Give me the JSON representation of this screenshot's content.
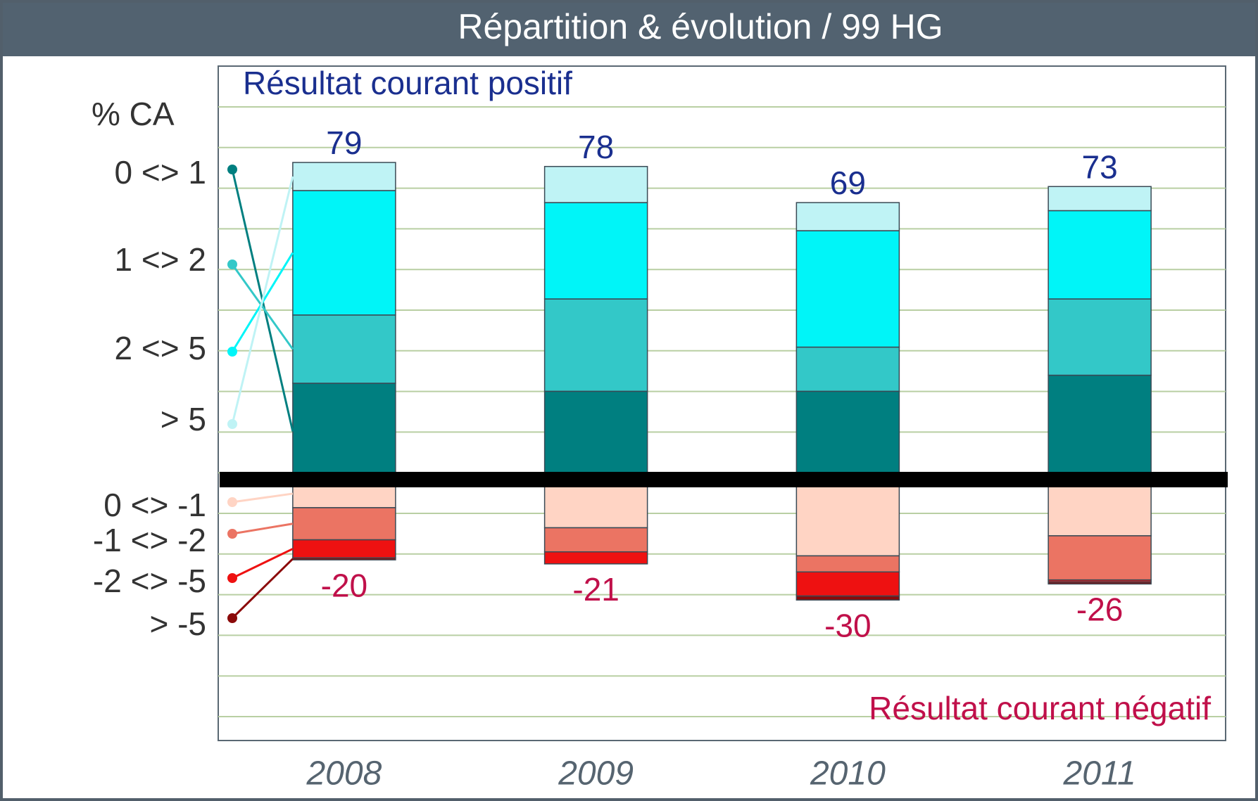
{
  "chart_data": {
    "type": "bar",
    "title": "Répartition & évolution / 99 HG",
    "positive_label": "Résultat courant positif",
    "negative_label": "Résultat courant négatif",
    "ylabel": "% CA",
    "categories": [
      "2008",
      "2009",
      "2010",
      "2011"
    ],
    "series": [
      {
        "name": "0 <> 1",
        "color": "#007f80",
        "values": [
          24,
          22,
          22,
          26
        ]
      },
      {
        "name": "1 <> 2",
        "color": "#33c8c8",
        "values": [
          17,
          23,
          11,
          19
        ]
      },
      {
        "name": "2 <> 5",
        "color": "#00f5f8",
        "values": [
          31,
          24,
          29,
          22
        ]
      },
      {
        "name": "> 5",
        "color": "#bff3f5",
        "values": [
          7,
          9,
          7,
          6
        ]
      },
      {
        "name": "0 <> -1",
        "color": "#ffd4c4",
        "values": [
          -7,
          -12,
          -19,
          -14
        ]
      },
      {
        "name": "-1 <> -2",
        "color": "#eb7463",
        "values": [
          -8,
          -6,
          -4,
          -11
        ]
      },
      {
        "name": "-2 <> -5",
        "color": "#ee1111",
        "values": [
          -4.5,
          -3,
          -6,
          -0.5
        ]
      },
      {
        "name": "> -5",
        "color": "#8b0a0a",
        "values": [
          -0.5,
          0,
          -1,
          -0.5
        ]
      }
    ],
    "positive_totals": [
      79,
      78,
      69,
      73
    ],
    "negative_totals": [
      -20,
      -21,
      -30,
      -26
    ],
    "positive_total_color": "#1a2f8f",
    "negative_total_color": "#c0104a",
    "ylim": [
      -65,
      103
    ]
  }
}
